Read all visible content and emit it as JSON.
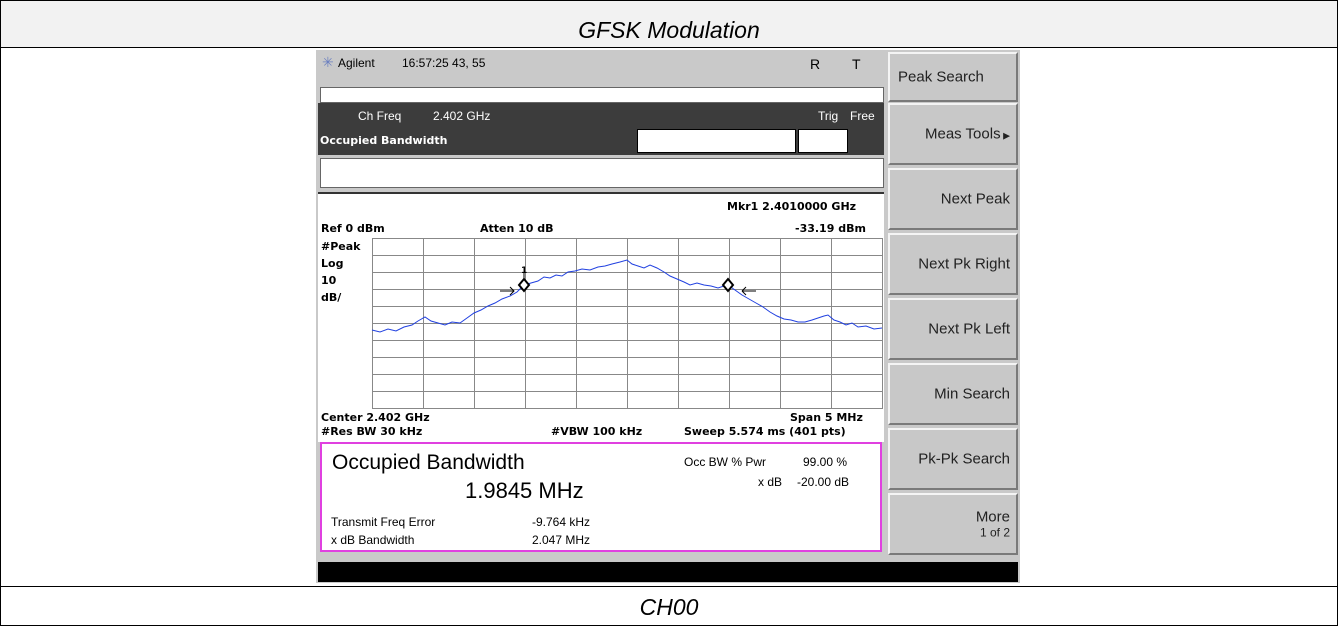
{
  "header": {
    "title": "GFSK Modulation"
  },
  "footer": {
    "label": "CH00"
  },
  "status": {
    "brand": "Agilent",
    "time": "16:57:25 43, 55",
    "r": "R",
    "t": "T"
  },
  "meas_bar": {
    "ch_freq_label": "Ch Freq",
    "ch_freq": "2.402 GHz",
    "trig_label": "Trig",
    "trig": "Free",
    "name": "Occupied Bandwidth"
  },
  "graph": {
    "marker": "Mkr1 2.4010000 GHz",
    "ref": "Ref 0 dBm",
    "atten": "Atten 10 dB",
    "marker_level": "-33.19 dBm",
    "scale": [
      "#Peak",
      "Log",
      "10",
      "dB/"
    ],
    "marker_num": "1",
    "center": "Center 2.402 GHz",
    "span": "Span 5 MHz",
    "res_bw": "#Res BW 30 kHz",
    "vbw": "#VBW 100 kHz",
    "sweep": "Sweep 5.574 ms (401 pts)"
  },
  "result": {
    "title": "Occupied Bandwidth",
    "value": "1.9845 MHz",
    "occ_label": "Occ BW % Pwr",
    "occ_value": "99.00 %",
    "xdb_label": "x dB",
    "xdb_value": "-20.00 dB",
    "tfe_label": "Transmit Freq Error",
    "tfe_value": "-9.764 kHz",
    "xbw_label": "x dB Bandwidth",
    "xbw_value": "2.047 MHz"
  },
  "softkeys": [
    "Peak Search",
    "Meas Tools",
    "Next Peak",
    "Next Pk Right",
    "Next Pk Left",
    "Min Search",
    "Pk-Pk Search",
    "More"
  ],
  "softkey_page": "1 of 2"
}
